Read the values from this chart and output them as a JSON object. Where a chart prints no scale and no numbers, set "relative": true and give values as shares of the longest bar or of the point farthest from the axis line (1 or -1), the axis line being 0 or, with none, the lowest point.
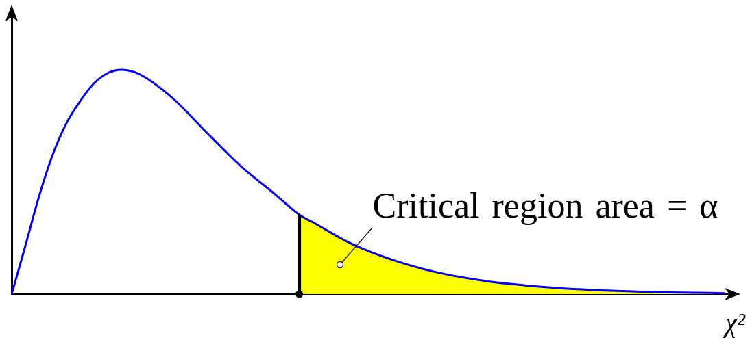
{
  "chart_data": {
    "type": "line",
    "relative": true,
    "xlabel": "χ²",
    "annotations": [
      "Critical region area = α"
    ],
    "marker": "none",
    "tick_labels": false,
    "categories": [
      null,
      null,
      null,
      null,
      null,
      null,
      null,
      null,
      null,
      null,
      null,
      null,
      null,
      null,
      null,
      null,
      null,
      null,
      null,
      null,
      null,
      null,
      null,
      null,
      null,
      null,
      null,
      null,
      null,
      null,
      null,
      null,
      null,
      null,
      null,
      null,
      null,
      null,
      null,
      null,
      null,
      null,
      null,
      null,
      null,
      null,
      null,
      null,
      null,
      null,
      null,
      null,
      null
    ],
    "series": [
      {
        "color": "#0000ff",
        "values": [
          0,
          0.215,
          0.436,
          0.622,
          0.762,
          0.86,
          0.939,
          0.985,
          1,
          0.989,
          0.957,
          0.912,
          0.86,
          0.799,
          0.735,
          0.674,
          0.613,
          0.556,
          0.506,
          0.457,
          0.404,
          0.354,
          0.32,
          0.285,
          0.25,
          0.219,
          0.193,
          0.17,
          0.149,
          0.13,
          0.113,
          0.098,
          0.085,
          0.074,
          0.064,
          0.055,
          0.048,
          0.042,
          0.036,
          0.031,
          0.027,
          0.023,
          0.02,
          0.017,
          0.015,
          0.013,
          0.011,
          0.009,
          0.008,
          0.007,
          0.006,
          0.005,
          0.004
        ]
      },
      {
        "type": "area",
        "color": "#ffff00",
        "values": [
          null,
          null,
          null,
          null,
          null,
          null,
          null,
          null,
          null,
          null,
          null,
          null,
          null,
          null,
          null,
          null,
          null,
          null,
          null,
          null,
          null,
          0.354,
          0.32,
          0.285,
          0.25,
          0.219,
          0.193,
          0.17,
          0.149,
          0.13,
          0.113,
          0.098,
          0.085,
          0.074,
          0.064,
          0.055,
          0.048,
          0.042,
          0.036,
          0.031,
          0.027,
          0.023,
          0.02,
          0.017,
          0.015,
          0.013,
          0.011,
          0.009,
          0.008,
          0.007,
          0.006,
          0.005,
          0.004
        ]
      }
    ]
  }
}
